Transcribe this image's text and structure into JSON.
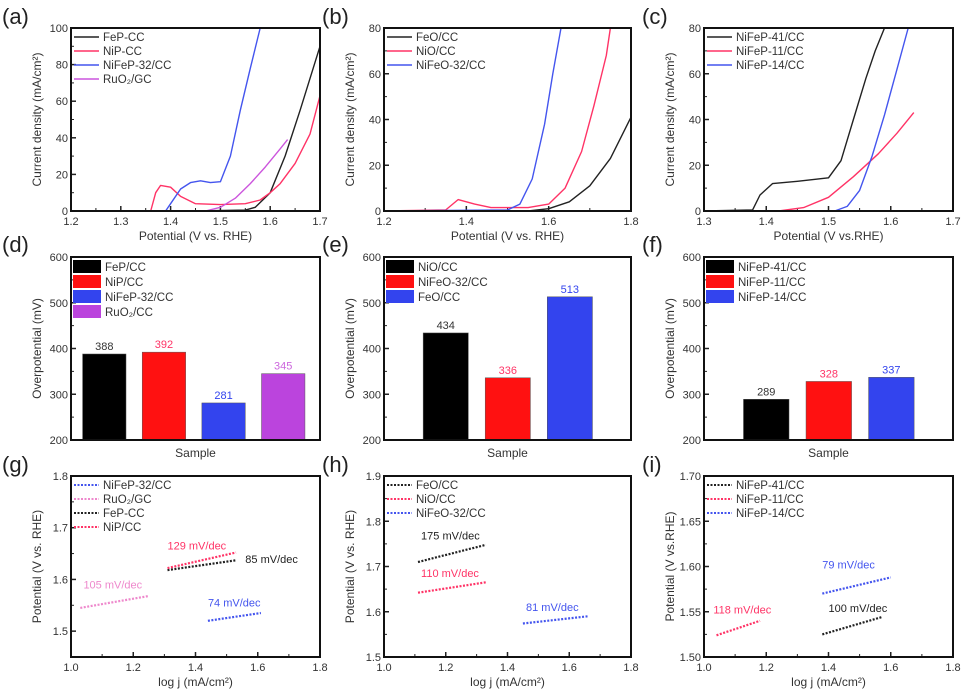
{
  "chart_data": [
    {
      "id": "a",
      "panel_label": "(a)",
      "type": "line",
      "xlabel": "Potential (V vs. RHE)",
      "ylabel": "Current density (mA/cm²)",
      "xlim": [
        1.2,
        1.7
      ],
      "ylim": [
        0,
        100
      ],
      "xticks": [
        "1.2",
        "1.3",
        "1.4",
        "1.5",
        "1.6",
        "1.7"
      ],
      "yticks": [
        "0",
        "20",
        "40",
        "60",
        "80",
        "100"
      ],
      "legend_position": "top-left",
      "series": [
        {
          "name": "FeP-CC",
          "color": "#222222",
          "x": [
            1.2,
            1.45,
            1.55,
            1.57,
            1.6,
            1.63,
            1.66,
            1.7
          ],
          "y": [
            0,
            0,
            0.5,
            2,
            10,
            30,
            55,
            90
          ]
        },
        {
          "name": "NiP-CC",
          "color": "#ff3366",
          "x": [
            1.2,
            1.36,
            1.37,
            1.38,
            1.4,
            1.42,
            1.45,
            1.5,
            1.55,
            1.58,
            1.6,
            1.62,
            1.65,
            1.68,
            1.7
          ],
          "y": [
            0,
            0,
            10,
            14,
            13,
            8,
            4,
            3.5,
            4,
            6,
            10,
            15,
            26,
            42,
            63
          ]
        },
        {
          "name": "NiFeP-32/CC",
          "color": "#4455ee",
          "x": [
            1.2,
            1.39,
            1.4,
            1.42,
            1.44,
            1.46,
            1.48,
            1.5,
            1.52,
            1.54,
            1.56,
            1.58
          ],
          "y": [
            0,
            0,
            4,
            12,
            15.5,
            16.5,
            15.5,
            16,
            30,
            55,
            78,
            100
          ]
        },
        {
          "name": "RuO₂/GC",
          "color": "#cc55dd",
          "x": [
            1.2,
            1.47,
            1.5,
            1.53,
            1.56,
            1.59,
            1.62,
            1.635
          ],
          "y": [
            0,
            0,
            2,
            7,
            15,
            24,
            34,
            39
          ]
        }
      ]
    },
    {
      "id": "b",
      "panel_label": "(b)",
      "type": "line",
      "xlabel": "Potential (V vs. RHE)",
      "ylabel": "Current density (mA/cm²)",
      "xlim": [
        1.2,
        1.8
      ],
      "ylim": [
        0,
        80
      ],
      "xticks": [
        "1.2",
        "1.4",
        "1.6",
        "1.8"
      ],
      "yticks": [
        "0",
        "20",
        "40",
        "60",
        "80"
      ],
      "legend_position": "top-left",
      "series": [
        {
          "name": "FeO/CC",
          "color": "#222222",
          "x": [
            1.2,
            1.55,
            1.6,
            1.65,
            1.7,
            1.75,
            1.8
          ],
          "y": [
            0,
            0,
            1,
            4,
            11,
            23,
            41
          ]
        },
        {
          "name": "NiO/CC",
          "color": "#ff3366",
          "x": [
            1.2,
            1.35,
            1.38,
            1.42,
            1.46,
            1.55,
            1.6,
            1.64,
            1.68,
            1.71,
            1.74,
            1.75
          ],
          "y": [
            0,
            0.5,
            5,
            3,
            1.5,
            1.5,
            3,
            10,
            26,
            46,
            68,
            80
          ]
        },
        {
          "name": "NiFeO-32/CC",
          "color": "#4455ee",
          "x": [
            1.2,
            1.5,
            1.53,
            1.56,
            1.59,
            1.61,
            1.63
          ],
          "y": [
            0,
            0.5,
            3,
            14,
            38,
            60,
            80
          ]
        }
      ]
    },
    {
      "id": "c",
      "panel_label": "(c)",
      "type": "line",
      "xlabel": "Potential (V vs.RHE)",
      "ylabel": "Current density (mA/cm²)",
      "xlim": [
        1.3,
        1.7
      ],
      "ylim": [
        0,
        80
      ],
      "xticks": [
        "1.3",
        "1.4",
        "1.5",
        "1.6",
        "1.7"
      ],
      "yticks": [
        "0",
        "20",
        "40",
        "60",
        "80"
      ],
      "legend_position": "top-left",
      "series": [
        {
          "name": "NiFeP-41/CC",
          "color": "#222222",
          "x": [
            1.3,
            1.378,
            1.39,
            1.41,
            1.45,
            1.5,
            1.52,
            1.54,
            1.56,
            1.575,
            1.59
          ],
          "y": [
            0,
            0.5,
            7,
            12,
            13,
            14.5,
            22,
            40,
            58,
            70,
            80
          ]
        },
        {
          "name": "NiFeP-11/CC",
          "color": "#ff3366",
          "x": [
            1.3,
            1.42,
            1.46,
            1.5,
            1.54,
            1.58,
            1.61,
            1.637
          ],
          "y": [
            0,
            0,
            1.5,
            6,
            15,
            25,
            34,
            43
          ]
        },
        {
          "name": "NiFeP-14/CC",
          "color": "#4455ee",
          "x": [
            1.3,
            1.51,
            1.53,
            1.55,
            1.57,
            1.59,
            1.61,
            1.628
          ],
          "y": [
            0,
            0,
            2,
            9,
            24,
            42,
            62,
            80
          ]
        }
      ]
    },
    {
      "id": "d",
      "panel_label": "(d)",
      "type": "bar",
      "xlabel": "Sample",
      "ylabel": "Overpotential (mV)",
      "ylim": [
        200,
        600
      ],
      "yticks": [
        "200",
        "300",
        "400",
        "500",
        "600"
      ],
      "legend_position": "top-left",
      "categories": [
        "FeP/CC",
        "NiP/CC",
        "NiFeP-32/CC",
        "RuO₂/CC"
      ],
      "values": [
        388,
        392,
        281,
        345
      ],
      "colors": [
        "#000000",
        "#ff1111",
        "#3344ee",
        "#bb44dd"
      ],
      "label_colors": [
        "#333333",
        "#ff3366",
        "#3344ee",
        "#cc66dd"
      ]
    },
    {
      "id": "e",
      "panel_label": "(e)",
      "type": "bar",
      "xlabel": "Sample",
      "ylabel": "Overpotential (mV)",
      "ylim": [
        200,
        600
      ],
      "yticks": [
        "200",
        "300",
        "400",
        "500",
        "600"
      ],
      "legend_position": "top-left",
      "categories": [
        "NiO/CC",
        "NiFeO-32/CC",
        "FeO/CC"
      ],
      "values": [
        434,
        336,
        513
      ],
      "colors": [
        "#000000",
        "#ff1111",
        "#3344ee"
      ],
      "label_colors": [
        "#333333",
        "#ff3366",
        "#3344ee"
      ]
    },
    {
      "id": "f",
      "panel_label": "(f)",
      "type": "bar",
      "xlabel": "Sample",
      "ylabel": "Overpotential (mV)",
      "ylim": [
        200,
        600
      ],
      "yticks": [
        "200",
        "300",
        "400",
        "500",
        "600"
      ],
      "legend_position": "top-left",
      "categories": [
        "NiFeP-41/CC",
        "NiFeP-11/CC",
        "NiFeP-14/CC"
      ],
      "values": [
        289,
        328,
        337
      ],
      "colors": [
        "#000000",
        "#ff1111",
        "#3344ee"
      ],
      "label_colors": [
        "#333333",
        "#ff3366",
        "#3344ee"
      ]
    },
    {
      "id": "g",
      "panel_label": "(g)",
      "type": "line",
      "xlabel": "log j (mA/cm²)",
      "ylabel": "Potential (V vs. RHE)",
      "xlim": [
        1.0,
        1.8
      ],
      "ylim": [
        1.45,
        1.8
      ],
      "xticks": [
        "1.0",
        "1.2",
        "1.4",
        "1.6",
        "1.8"
      ],
      "xtick_vals": [
        1.0,
        1.2,
        1.4,
        1.6,
        1.8
      ],
      "yticks": [
        "1.5",
        "1.6",
        "1.7",
        "1.8"
      ],
      "ytick_vals": [
        1.5,
        1.6,
        1.7,
        1.8
      ],
      "legend_position": "top-left",
      "series": [
        {
          "name": "NiFeP-32/CC",
          "color": "#4455ee",
          "x": [
            1.44,
            1.61
          ],
          "y": [
            1.52,
            1.535
          ],
          "annotation": "74 mV/dec",
          "ann_x": 1.44,
          "ann_y": 1.548
        },
        {
          "name": "RuO₂/GC",
          "color": "#ee88cc",
          "x": [
            1.03,
            1.25
          ],
          "y": [
            1.545,
            1.568
          ],
          "annotation": "105 mV/dec",
          "ann_x": 1.04,
          "ann_y": 1.582
        },
        {
          "name": "FeP-CC",
          "color": "#222222",
          "x": [
            1.31,
            1.53
          ],
          "y": [
            1.618,
            1.637
          ],
          "annotation": "85 mV/dec",
          "ann_x": 1.56,
          "ann_y": 1.632
        },
        {
          "name": "NiP/CC",
          "color": "#ff3366",
          "x": [
            1.31,
            1.53
          ],
          "y": [
            1.622,
            1.652
          ],
          "annotation": "129 mV/dec",
          "ann_x": 1.31,
          "ann_y": 1.658
        }
      ]
    },
    {
      "id": "h",
      "panel_label": "(h)",
      "type": "line",
      "xlabel": "log j (mA/cm²)",
      "ylabel": "Potential (V vs. RHE)",
      "xlim": [
        1.0,
        1.8
      ],
      "ylim": [
        1.5,
        1.9
      ],
      "xticks": [
        "1.0",
        "1.2",
        "1.4",
        "1.6",
        "1.8"
      ],
      "xtick_vals": [
        1.0,
        1.2,
        1.4,
        1.6,
        1.8
      ],
      "yticks": [
        "1.5",
        "1.6",
        "1.7",
        "1.8",
        "1.9"
      ],
      "ytick_vals": [
        1.5,
        1.6,
        1.7,
        1.8,
        1.9
      ],
      "legend_position": "top-left",
      "series": [
        {
          "name": "FeO/CC",
          "color": "#222222",
          "x": [
            1.11,
            1.33
          ],
          "y": [
            1.71,
            1.748
          ],
          "annotation": "175 mV/dec",
          "ann_x": 1.12,
          "ann_y": 1.76
        },
        {
          "name": "NiO/CC",
          "color": "#ff3366",
          "x": [
            1.11,
            1.33
          ],
          "y": [
            1.642,
            1.665
          ],
          "annotation": "110 mV/dec",
          "ann_x": 1.12,
          "ann_y": 1.677
        },
        {
          "name": "NiFeO-32/CC",
          "color": "#4455ee",
          "x": [
            1.45,
            1.66
          ],
          "y": [
            1.574,
            1.59
          ],
          "annotation": "81 mV/dec",
          "ann_x": 1.46,
          "ann_y": 1.602
        }
      ]
    },
    {
      "id": "i",
      "panel_label": "(i)",
      "type": "line",
      "xlabel": "log j (mA/cm²)",
      "ylabel": "Potential (V vs.RHE)",
      "xlim": [
        1.0,
        1.8
      ],
      "ylim": [
        1.5,
        1.7
      ],
      "xticks": [
        "1.0",
        "1.2",
        "1.4",
        "1.6",
        "1.8"
      ],
      "xtick_vals": [
        1.0,
        1.2,
        1.4,
        1.6,
        1.8
      ],
      "yticks": [
        "1.50",
        "1.55",
        "1.60",
        "1.65",
        "1.70"
      ],
      "ytick_vals": [
        1.5,
        1.55,
        1.6,
        1.65,
        1.7
      ],
      "legend_position": "top-left",
      "series": [
        {
          "name": "NiFeP-41/CC",
          "color": "#222222",
          "x": [
            1.38,
            1.57
          ],
          "y": [
            1.525,
            1.544
          ],
          "annotation": "100 mV/dec",
          "ann_x": 1.4,
          "ann_y": 1.55
        },
        {
          "name": "NiFeP-11/CC",
          "color": "#ff3366",
          "x": [
            1.04,
            1.18
          ],
          "y": [
            1.524,
            1.54
          ],
          "annotation": "118 mV/dec",
          "ann_x": 1.03,
          "ann_y": 1.548
        },
        {
          "name": "NiFeP-14/CC",
          "color": "#4455ee",
          "x": [
            1.38,
            1.6
          ],
          "y": [
            1.57,
            1.588
          ],
          "annotation": "79 mV/dec",
          "ann_x": 1.38,
          "ann_y": 1.598
        }
      ]
    }
  ]
}
